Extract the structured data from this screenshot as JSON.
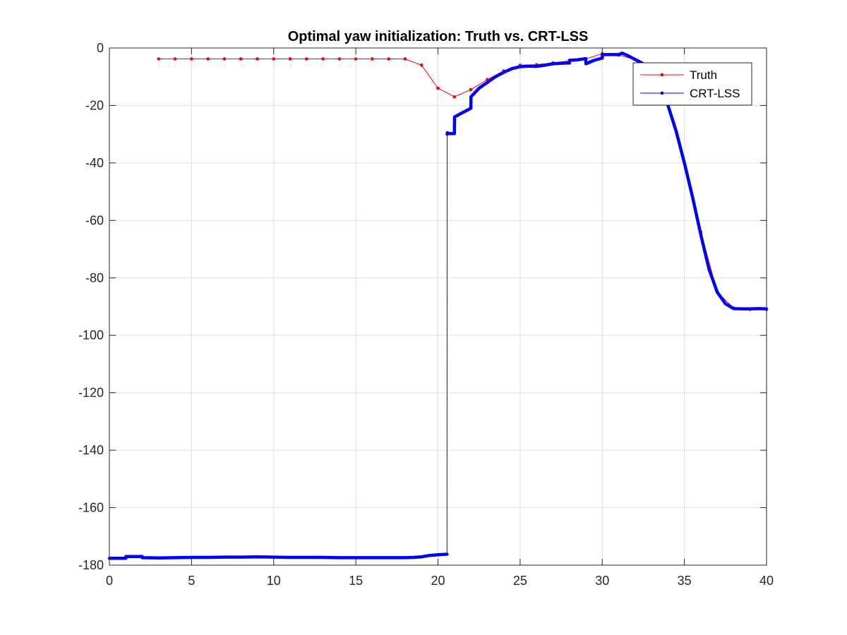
{
  "chart_data": {
    "type": "line",
    "title": "Optimal yaw initialization: Truth vs. CRT-LSS",
    "xlabel": "",
    "ylabel": "",
    "xlim": [
      0,
      40
    ],
    "ylim": [
      -180,
      0
    ],
    "x_ticks": [
      0,
      5,
      10,
      15,
      20,
      25,
      30,
      35,
      40
    ],
    "y_ticks": [
      0,
      -20,
      -40,
      -60,
      -80,
      -100,
      -120,
      -140,
      -160,
      -180
    ],
    "grid": true,
    "legend_position": "top-right",
    "series": [
      {
        "name": "Truth",
        "color": "#ff0000",
        "marker": "dot",
        "x": [
          3,
          4,
          5,
          6,
          7,
          8,
          9,
          10,
          11,
          12,
          13,
          14,
          15,
          16,
          17,
          18,
          19,
          20,
          21,
          22,
          23,
          24,
          25,
          26,
          27,
          28,
          29,
          30,
          31,
          32,
          33,
          34,
          35,
          36,
          37,
          38,
          39,
          40
        ],
        "y": [
          -3.8,
          -3.8,
          -3.8,
          -3.8,
          -3.8,
          -3.8,
          -3.8,
          -3.8,
          -3.8,
          -3.8,
          -3.8,
          -3.8,
          -3.8,
          -3.8,
          -3.8,
          -3.8,
          -6,
          -14,
          -17,
          -14.5,
          -11,
          -8,
          -6,
          -5.8,
          -5.2,
          -4.5,
          -3.8,
          -2,
          -2.5,
          -4,
          -8,
          -20,
          -40,
          -64,
          -85,
          -90.5,
          -91,
          -91
        ]
      },
      {
        "name": "CRT-LSS",
        "color": "#0000ff",
        "marker": "dot",
        "x": [
          0,
          1,
          1,
          2,
          2,
          3,
          4,
          5,
          6,
          7,
          8,
          9,
          10,
          11,
          12,
          13,
          14,
          15,
          16,
          17,
          18,
          18.5,
          19,
          19.5,
          20,
          20.55,
          20.56,
          20.57,
          20.58,
          20.6,
          21,
          21.01,
          21.5,
          22,
          22.01,
          22.5,
          23,
          23.5,
          24,
          24.5,
          25,
          25.5,
          26,
          26.5,
          27,
          27.5,
          28,
          28.01,
          28.5,
          29,
          29.01,
          29.5,
          30,
          30.01,
          30.5,
          31,
          31.2,
          31.5,
          32,
          32.5,
          33,
          33.5,
          34,
          34.5,
          35,
          35.5,
          36,
          36.5,
          37,
          37.5,
          38,
          38.5,
          39,
          39.5,
          40
        ],
        "y": [
          -177.6,
          -177.6,
          -177,
          -177,
          -177.4,
          -177.5,
          -177.4,
          -177.3,
          -177.3,
          -177.2,
          -177.2,
          -177.1,
          -177.2,
          -177.3,
          -177.3,
          -177.3,
          -177.4,
          -177.4,
          -177.4,
          -177.4,
          -177.4,
          -177.3,
          -177.1,
          -176.6,
          -176.4,
          -176.2,
          -30,
          -29.5,
          -29.8,
          -29.8,
          -29.8,
          -24,
          -22.5,
          -21,
          -17,
          -14,
          -12,
          -10,
          -8.5,
          -7.2,
          -6.5,
          -6.3,
          -6.4,
          -6,
          -5.5,
          -5.3,
          -5.2,
          -4.3,
          -4.1,
          -3.7,
          -5.5,
          -4.3,
          -3.5,
          -2.3,
          -2.3,
          -2.3,
          -1.8,
          -2.5,
          -4,
          -5.5,
          -8,
          -13,
          -20,
          -29,
          -40,
          -52,
          -65,
          -77,
          -85,
          -89,
          -90.7,
          -90.8,
          -90.8,
          -90.7,
          -90.8
        ]
      }
    ]
  }
}
